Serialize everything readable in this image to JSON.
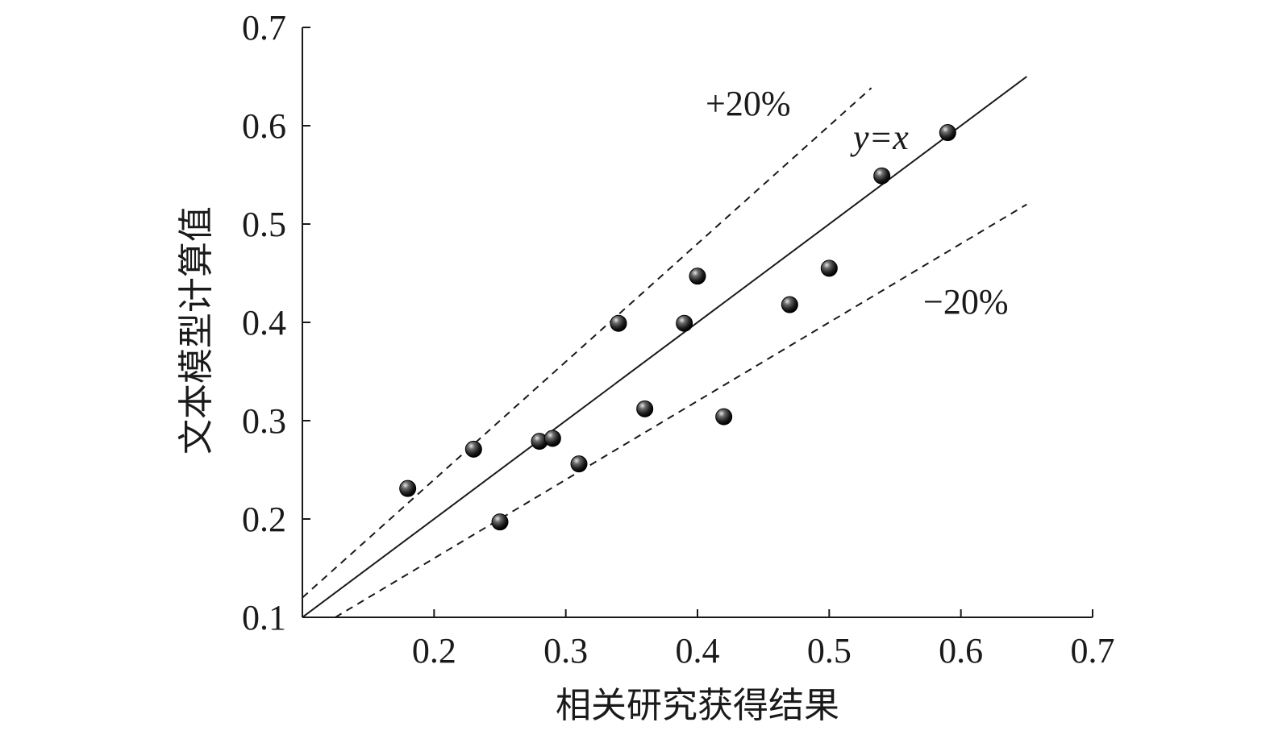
{
  "chart_data": {
    "type": "scatter",
    "xlabel": "相关研究获得结果",
    "ylabel": "文本模型计算值",
    "xlim": [
      0.1,
      0.7
    ],
    "ylim": [
      0.1,
      0.7
    ],
    "x_ticks": [
      "0.2",
      "0.3",
      "0.4",
      "0.5",
      "0.6",
      "0.7"
    ],
    "y_ticks": [
      "0.1",
      "0.2",
      "0.3",
      "0.4",
      "0.5",
      "0.6",
      "0.7"
    ],
    "grid": false,
    "points": [
      {
        "x": 0.18,
        "y": 0.231
      },
      {
        "x": 0.23,
        "y": 0.271
      },
      {
        "x": 0.25,
        "y": 0.197
      },
      {
        "x": 0.28,
        "y": 0.279
      },
      {
        "x": 0.29,
        "y": 0.282
      },
      {
        "x": 0.31,
        "y": 0.256
      },
      {
        "x": 0.34,
        "y": 0.399
      },
      {
        "x": 0.36,
        "y": 0.312
      },
      {
        "x": 0.39,
        "y": 0.399
      },
      {
        "x": 0.4,
        "y": 0.447
      },
      {
        "x": 0.42,
        "y": 0.304
      },
      {
        "x": 0.47,
        "y": 0.418
      },
      {
        "x": 0.5,
        "y": 0.455
      },
      {
        "x": 0.54,
        "y": 0.549
      },
      {
        "x": 0.59,
        "y": 0.593
      }
    ],
    "reference_lines": [
      {
        "label": "y=x",
        "slope": 1.0,
        "style": "solid",
        "x_range": [
          0.1,
          0.65
        ]
      },
      {
        "label": "+20%",
        "slope": 1.2,
        "style": "dashed",
        "x_range": [
          0.1,
          0.532
        ]
      },
      {
        "label": "−20%",
        "slope": 0.8,
        "style": "dashed",
        "x_range": [
          0.125,
          0.65
        ]
      }
    ],
    "annotations": {
      "plus": "+20%",
      "identity": "y=x",
      "minus": "−20%"
    }
  }
}
